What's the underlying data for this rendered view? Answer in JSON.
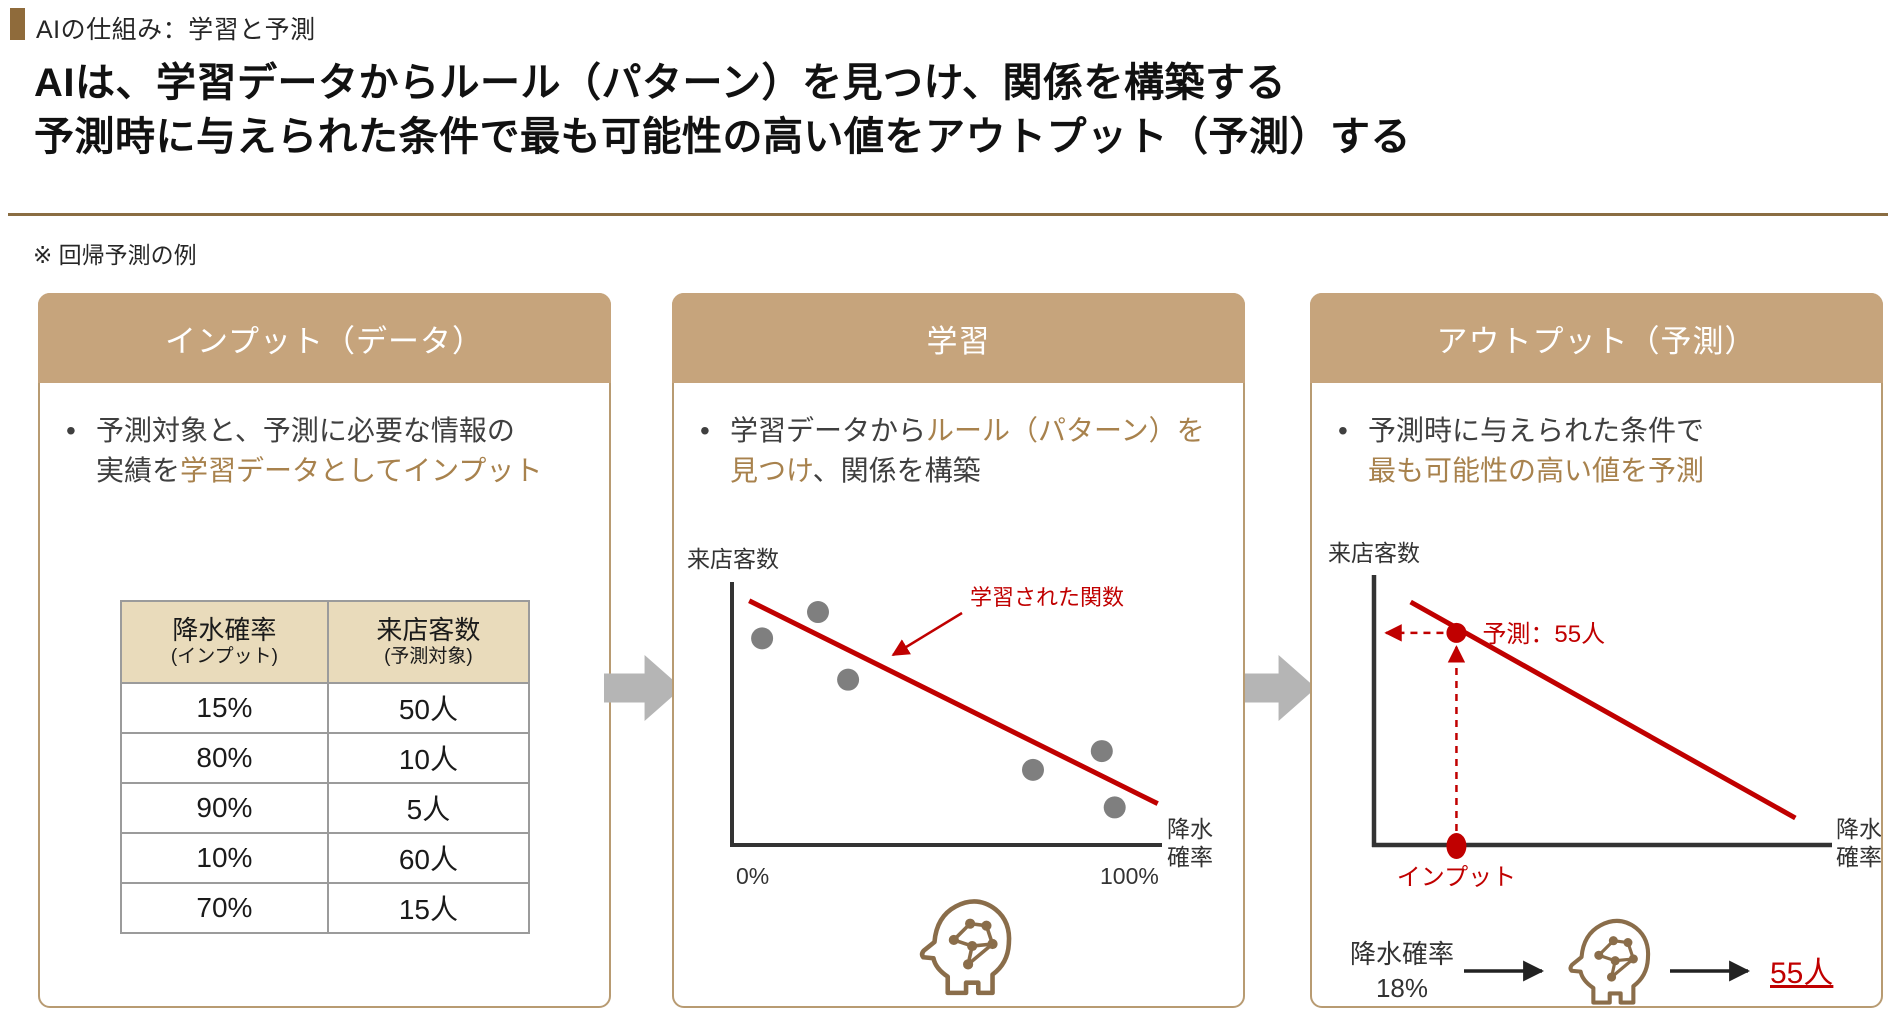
{
  "page": {
    "kicker": "AIの仕組み：学習と予測",
    "title_line1": "AIは、学習データからルール（パターン）を見つけ、関係を構築する",
    "title_line2": "予測時に与えられた条件で最も可能性の高い値をアウトプット（予測）する",
    "note": "※ 回帰予測の例"
  },
  "colors": {
    "accent_tan_header": "#c6a47c",
    "accent_brown_text": "#a8824d",
    "kicker_bar_brown": "#8f6b3b",
    "divider_brown": "#8a6d42",
    "red": "#c00000",
    "dark_text": "#3f3f3f",
    "panel_border": "#b89b72",
    "table_header_bg": "#e9dbbb",
    "gray_arrow": "#b5b5b5",
    "scatter_dot_gray": "#7f7f7f"
  },
  "input_panel": {
    "header": "インプット（データ）",
    "bullet_line1": "予測対象と、予測に必要な情報の",
    "bullet_line2_dark": "実績を",
    "bullet_line2_brown": "学習データとしてインプット",
    "table": {
      "col1_header": "降水確率",
      "col1_sub": "(インプット)",
      "col2_header": "来店客数",
      "col2_sub": "(予測対象)",
      "rows": [
        {
          "rain": "15%",
          "visitors": "50人"
        },
        {
          "rain": "80%",
          "visitors": "10人"
        },
        {
          "rain": "90%",
          "visitors": "5人"
        },
        {
          "rain": "10%",
          "visitors": "60人"
        },
        {
          "rain": "70%",
          "visitors": "15人"
        }
      ]
    }
  },
  "learning_panel": {
    "header": "学習",
    "bullet_line1_dark": "学習データから",
    "bullet_line1_brown": "ルール（パターン）を",
    "bullet_line2_brown": "見つけ",
    "bullet_line2_dark": "、関係を構築",
    "chart": {
      "ylabel": "来店客数",
      "x_min_label": "0%",
      "x_max_label": "100%",
      "xlabel_line1": "降水",
      "xlabel_line2": "確率",
      "annotation": "学習された関数"
    }
  },
  "output_panel": {
    "header": "アウトプット（予測）",
    "bullet_line1_dark": "予測時に与えられた条件で",
    "bullet_line2_brown": "最も可能性の高い値を予測",
    "chart": {
      "ylabel": "来店客数",
      "xlabel_line1": "降水",
      "xlabel_line2": "確率",
      "prediction_label": "予測：55人",
      "input_label": "インプット"
    },
    "flow": {
      "input_line1": "降水確率",
      "input_line2": "18%",
      "result": "55人"
    }
  },
  "chart_data": [
    {
      "type": "table",
      "title": "インプット（データ）",
      "columns": [
        "降水確率 (インプット)",
        "来店客数 (予測対象)"
      ],
      "rows": [
        [
          "15%",
          "50人"
        ],
        [
          "80%",
          "10人"
        ],
        [
          "90%",
          "5人"
        ],
        [
          "10%",
          "60人"
        ],
        [
          "70%",
          "15人"
        ]
      ]
    },
    {
      "type": "scatter",
      "title": "学習",
      "xlabel": "降水確率",
      "ylabel": "来店客数",
      "xlim": [
        0,
        100
      ],
      "ylim": [
        0,
        70
      ],
      "points": [
        [
          7,
          55
        ],
        [
          20,
          62
        ],
        [
          27,
          44
        ],
        [
          70,
          20
        ],
        [
          86,
          25
        ],
        [
          89,
          10
        ]
      ],
      "regression_line": {
        "from": [
          4,
          65
        ],
        "to": [
          99,
          11
        ]
      },
      "annotation": "学習された関数",
      "grid": false
    },
    {
      "type": "line",
      "title": "アウトプット（予測）",
      "xlabel": "降水確率",
      "ylabel": "来店客数",
      "xlim": [
        0,
        100
      ],
      "ylim": [
        0,
        70
      ],
      "line": {
        "from": [
          8,
          63
        ],
        "to": [
          92,
          7
        ]
      },
      "prediction": {
        "x": 18,
        "y": 55,
        "label": "予測：55人",
        "input_label": "インプット"
      },
      "grid": false
    }
  ]
}
